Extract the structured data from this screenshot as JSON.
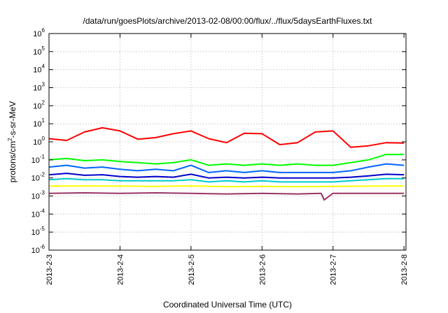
{
  "chart_data": {
    "type": "line",
    "title": "/data/run/goesPlots/archive/2013-02-08/00:00/flux/../flux/5daysEarthFluxes.txt",
    "xlabel": "Coordinated Universal Time (UTC)",
    "ylabel": "protons/cm2-s-sr-MeV",
    "ylabel_parts": {
      "pre": "protons/cm",
      "sup": "2",
      "post": "-s-sr-MeV"
    },
    "yscale": "log",
    "ylim": [
      1e-06,
      1000000.0
    ],
    "xlim": [
      "2013-02-03",
      "2013-02-08 00:40"
    ],
    "grid": true,
    "x_ticks": [
      "2013-2-3",
      "2013-2-4",
      "2013-2-5",
      "2013-2-6",
      "2013-2-7",
      "2013-2-8"
    ],
    "y_ticks": [
      {
        "base": "10",
        "exp": "-6"
      },
      {
        "base": "10",
        "exp": "-5"
      },
      {
        "base": "10",
        "exp": "-4"
      },
      {
        "base": "10",
        "exp": "-3"
      },
      {
        "base": "10",
        "exp": "-2"
      },
      {
        "base": "10",
        "exp": "-1"
      },
      {
        "base": "10",
        "exp": "0"
      },
      {
        "base": "10",
        "exp": "1"
      },
      {
        "base": "10",
        "exp": "2"
      },
      {
        "base": "10",
        "exp": "3"
      },
      {
        "base": "10",
        "exp": "4"
      },
      {
        "base": "10",
        "exp": "5"
      },
      {
        "base": "10",
        "exp": "6"
      }
    ],
    "series": [
      {
        "color": "#ff0000",
        "x": [
          "2013-02-03 00:00",
          "2013-02-03 06:00",
          "2013-02-03 12:00",
          "2013-02-03 18:00",
          "2013-02-04 00:00",
          "2013-02-04 06:00",
          "2013-02-04 12:00",
          "2013-02-04 18:00",
          "2013-02-05 00:00",
          "2013-02-05 06:00",
          "2013-02-05 12:00",
          "2013-02-05 18:00",
          "2013-02-06 00:00",
          "2013-02-06 06:00",
          "2013-02-06 12:00",
          "2013-02-06 18:00",
          "2013-02-07 00:00",
          "2013-02-07 06:00",
          "2013-02-07 12:00",
          "2013-02-07 18:00",
          "2013-02-08 00:00"
        ],
        "y": [
          1.5,
          1.2,
          3.5,
          6.0,
          4.0,
          1.4,
          1.7,
          2.8,
          4.0,
          1.5,
          0.9,
          3.0,
          2.8,
          0.7,
          0.9,
          3.5,
          4.0,
          0.5,
          0.6,
          0.9,
          0.85
        ]
      },
      {
        "color": "#00ff00",
        "x": [
          "2013-02-03 00:00",
          "2013-02-03 06:00",
          "2013-02-03 12:00",
          "2013-02-03 18:00",
          "2013-02-04 00:00",
          "2013-02-04 06:00",
          "2013-02-04 12:00",
          "2013-02-04 18:00",
          "2013-02-05 00:00",
          "2013-02-05 06:00",
          "2013-02-05 12:00",
          "2013-02-05 18:00",
          "2013-02-06 00:00",
          "2013-02-06 06:00",
          "2013-02-06 12:00",
          "2013-02-06 18:00",
          "2013-02-07 00:00",
          "2013-02-07 06:00",
          "2013-02-07 12:00",
          "2013-02-07 18:00",
          "2013-02-08 00:00"
        ],
        "y": [
          0.1,
          0.12,
          0.09,
          0.1,
          0.08,
          0.07,
          0.06,
          0.07,
          0.1,
          0.05,
          0.06,
          0.05,
          0.06,
          0.05,
          0.06,
          0.05,
          0.05,
          0.07,
          0.1,
          0.2,
          0.2
        ]
      },
      {
        "color": "#0066ff",
        "x": [
          "2013-02-03 00:00",
          "2013-02-03 06:00",
          "2013-02-03 12:00",
          "2013-02-03 18:00",
          "2013-02-04 00:00",
          "2013-02-04 06:00",
          "2013-02-04 12:00",
          "2013-02-04 18:00",
          "2013-02-05 00:00",
          "2013-02-05 06:00",
          "2013-02-05 12:00",
          "2013-02-05 18:00",
          "2013-02-06 00:00",
          "2013-02-06 06:00",
          "2013-02-06 12:00",
          "2013-02-06 18:00",
          "2013-02-07 00:00",
          "2013-02-07 06:00",
          "2013-02-07 12:00",
          "2013-02-07 18:00",
          "2013-02-08 00:00"
        ],
        "y": [
          0.04,
          0.05,
          0.035,
          0.04,
          0.03,
          0.025,
          0.03,
          0.025,
          0.05,
          0.02,
          0.025,
          0.02,
          0.025,
          0.02,
          0.02,
          0.02,
          0.02,
          0.025,
          0.04,
          0.06,
          0.05
        ]
      },
      {
        "color": "#0000cc",
        "x": [
          "2013-02-03 00:00",
          "2013-02-03 06:00",
          "2013-02-03 12:00",
          "2013-02-03 18:00",
          "2013-02-04 00:00",
          "2013-02-04 06:00",
          "2013-02-04 12:00",
          "2013-02-04 18:00",
          "2013-02-05 00:00",
          "2013-02-05 06:00",
          "2013-02-05 12:00",
          "2013-02-05 18:00",
          "2013-02-06 00:00",
          "2013-02-06 06:00",
          "2013-02-06 12:00",
          "2013-02-06 18:00",
          "2013-02-07 00:00",
          "2013-02-07 06:00",
          "2013-02-07 12:00",
          "2013-02-07 18:00",
          "2013-02-08 00:00"
        ],
        "y": [
          0.015,
          0.018,
          0.014,
          0.015,
          0.012,
          0.011,
          0.012,
          0.011,
          0.016,
          0.01,
          0.011,
          0.01,
          0.011,
          0.01,
          0.01,
          0.01,
          0.01,
          0.011,
          0.013,
          0.016,
          0.015
        ]
      },
      {
        "color": "#00cccc",
        "x": [
          "2013-02-03 00:00",
          "2013-02-03 06:00",
          "2013-02-03 12:00",
          "2013-02-03 18:00",
          "2013-02-04 00:00",
          "2013-02-04 06:00",
          "2013-02-04 12:00",
          "2013-02-04 18:00",
          "2013-02-05 00:00",
          "2013-02-05 06:00",
          "2013-02-05 12:00",
          "2013-02-05 18:00",
          "2013-02-06 00:00",
          "2013-02-06 06:00",
          "2013-02-06 12:00",
          "2013-02-06 18:00",
          "2013-02-07 00:00",
          "2013-02-07 06:00",
          "2013-02-07 12:00",
          "2013-02-07 18:00",
          "2013-02-08 00:00"
        ],
        "y": [
          0.008,
          0.009,
          0.008,
          0.008,
          0.007,
          0.007,
          0.007,
          0.007,
          0.008,
          0.006,
          0.007,
          0.006,
          0.007,
          0.006,
          0.006,
          0.006,
          0.006,
          0.007,
          0.008,
          0.009,
          0.009
        ]
      },
      {
        "color": "#ffff00",
        "x": [
          "2013-02-03 00:00",
          "2013-02-03 12:00",
          "2013-02-04 00:00",
          "2013-02-04 12:00",
          "2013-02-05 00:00",
          "2013-02-05 12:00",
          "2013-02-06 00:00",
          "2013-02-06 12:00",
          "2013-02-07 00:00",
          "2013-02-07 12:00",
          "2013-02-08 00:00"
        ],
        "y": [
          0.0035,
          0.0036,
          0.0035,
          0.0034,
          0.0036,
          0.0033,
          0.0034,
          0.0033,
          0.0034,
          0.0035,
          0.0036
        ]
      },
      {
        "color": "#993366",
        "x": [
          "2013-02-03 00:00",
          "2013-02-03 12:00",
          "2013-02-04 00:00",
          "2013-02-04 12:00",
          "2013-02-05 00:00",
          "2013-02-05 12:00",
          "2013-02-06 00:00",
          "2013-02-06 12:00",
          "2013-02-06 20:00",
          "2013-02-06 21:00",
          "2013-02-07 00:00",
          "2013-02-07 12:00",
          "2013-02-08 00:00"
        ],
        "y": [
          0.0014,
          0.0015,
          0.0014,
          0.0015,
          0.0014,
          0.0013,
          0.0014,
          0.0013,
          0.0014,
          0.0006,
          0.0014,
          0.0014,
          0.0014
        ]
      }
    ]
  }
}
